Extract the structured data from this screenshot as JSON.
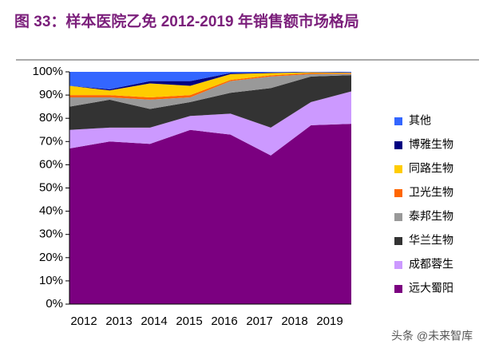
{
  "chart_data": {
    "type": "stacked_area",
    "title": "图 33：样本医院乙免 2012-2019 年销售额市场格局",
    "watermark": "头条 @未来智库",
    "categories": [
      "2012",
      "2013",
      "2014",
      "2015",
      "2016",
      "2017",
      "2018",
      "2019"
    ],
    "series": [
      {
        "name": "远大蜀阳",
        "color": "#7b0080",
        "values": [
          67,
          70,
          69,
          75,
          73,
          64,
          77,
          77.6
        ]
      },
      {
        "name": "成都蓉生",
        "color": "#cc99ff",
        "values": [
          8,
          6,
          7,
          6,
          9,
          12,
          10,
          14
        ]
      },
      {
        "name": "华兰生物",
        "color": "#333333",
        "values": [
          10,
          12,
          8,
          6,
          9,
          17,
          11,
          7
        ]
      },
      {
        "name": "泰邦生物",
        "color": "#999999",
        "values": [
          4,
          1,
          4,
          2,
          5,
          5,
          1,
          0.5
        ]
      },
      {
        "name": "卫光生物",
        "color": "#ff6600",
        "values": [
          1,
          1,
          1,
          1,
          0.5,
          0.5,
          0.5,
          0.3
        ]
      },
      {
        "name": "同路生物",
        "color": "#ffcc00",
        "values": [
          4,
          2,
          6,
          4,
          2.5,
          1,
          0.3,
          0.2
        ]
      },
      {
        "name": "博雅生物",
        "color": "#000080",
        "values": [
          0,
          0.5,
          1,
          2,
          0.5,
          0.2,
          0.1,
          0.2
        ]
      },
      {
        "name": "其他",
        "color": "#3366ff",
        "values": [
          6,
          7.5,
          4,
          4,
          0.5,
          0.3,
          0.1,
          0.2
        ]
      }
    ],
    "ylim": [
      0,
      100
    ],
    "yticks": [
      {
        "value": 0,
        "label": "0%"
      },
      {
        "value": 10,
        "label": "10%"
      },
      {
        "value": 20,
        "label": "20%"
      },
      {
        "value": 30,
        "label": "30%"
      },
      {
        "value": 40,
        "label": "40%"
      },
      {
        "value": 50,
        "label": "50%"
      },
      {
        "value": 60,
        "label": "60%"
      },
      {
        "value": 70,
        "label": "70%"
      },
      {
        "value": 80,
        "label": "80%"
      },
      {
        "value": 90,
        "label": "90%"
      },
      {
        "value": 100,
        "label": "100%"
      }
    ]
  }
}
